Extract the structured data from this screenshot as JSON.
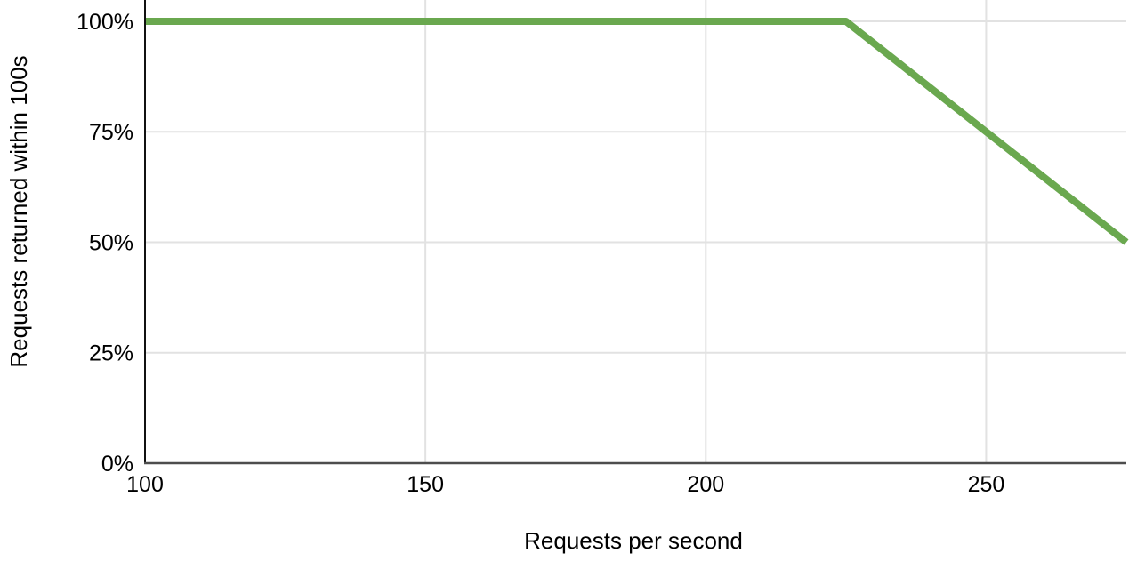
{
  "chart_data": {
    "type": "line",
    "title": "",
    "xlabel": "Requests per second",
    "ylabel": "Requests returned within 100s",
    "x_ticks": [
      100,
      150,
      200,
      250
    ],
    "x_tick_labels": [
      "100",
      "150",
      "200",
      "250"
    ],
    "y_ticks": [
      0,
      25,
      50,
      75,
      100
    ],
    "y_tick_labels": [
      "0%",
      "25%",
      "50%",
      "75%",
      "100%"
    ],
    "xlim": [
      100,
      275
    ],
    "ylim": [
      0,
      100
    ],
    "grid": true,
    "legend_position": "none",
    "series": [
      {
        "name": "Requests returned within 100s",
        "color": "#6aa84f",
        "points": [
          [
            100,
            100
          ],
          [
            225,
            100
          ],
          [
            250,
            75
          ],
          [
            275,
            50
          ]
        ]
      }
    ],
    "colors": {
      "line": "#6aa84f",
      "gridline": "#e2e2e2",
      "x_axis": "#4d4d4d",
      "y_axis": "#111111",
      "text": "#000000",
      "background": "#ffffff"
    }
  }
}
